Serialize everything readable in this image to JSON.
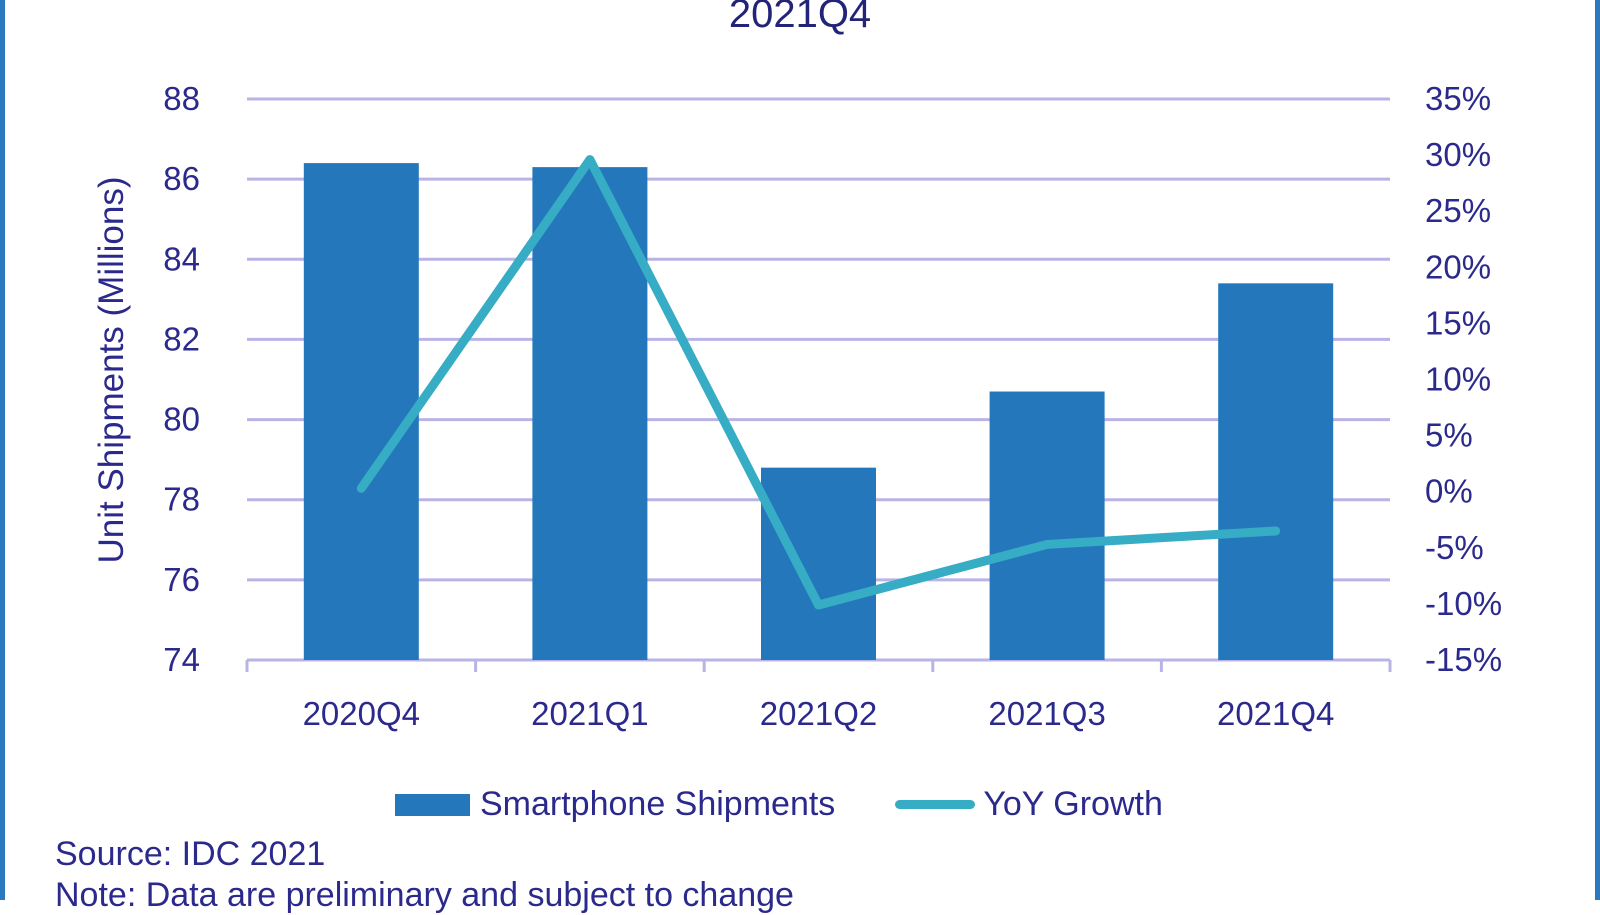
{
  "chart_data": {
    "type": "bar",
    "title": "2021Q4",
    "xlabel": "",
    "ylabel": "Unit Shipments (Millions)",
    "y2label": "",
    "categories": [
      "2020Q4",
      "2021Q1",
      "2021Q2",
      "2021Q3",
      "2021Q4"
    ],
    "series": [
      {
        "name": "Smartphone Shipments",
        "type": "bar",
        "axis": "left",
        "color": "#2477bb",
        "values": [
          86.4,
          86.3,
          78.8,
          80.7,
          83.4
        ]
      },
      {
        "name": "YoY Growth",
        "type": "line",
        "axis": "right",
        "color": "#36acc5",
        "values": [
          0.3,
          29.6,
          -10.1,
          -4.7,
          -3.5
        ]
      }
    ],
    "ylim": [
      74,
      88
    ],
    "yticks": [
      "74",
      "76",
      "78",
      "80",
      "82",
      "84",
      "86",
      "88"
    ],
    "y2lim": [
      -15,
      35
    ],
    "y2ticks": [
      "-15%",
      "-10%",
      "-5%",
      "0%",
      "5%",
      "10%",
      "15%",
      "20%",
      "25%",
      "30%",
      "35%"
    ],
    "grid": true,
    "gridColor": "#b9b4e6",
    "legend": "bottom",
    "source": "Source: IDC 2021",
    "note": "Note: Data are preliminary and subject to change"
  }
}
